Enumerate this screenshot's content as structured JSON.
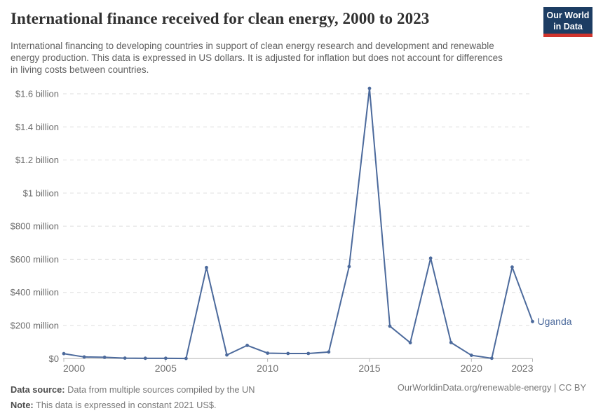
{
  "header": {
    "title": "International finance received for clean energy, 2000 to 2023",
    "subtitle": "International financing to developing countries in support of clean energy research and development and renewable energy production. This data is expressed in US dollars. It is adjusted for inflation but does not account for differences in living costs between countries.",
    "logo": {
      "line1": "Our World",
      "line2": "in Data",
      "navy": "#1d3d63",
      "red": "#d0342c"
    }
  },
  "chart_data": {
    "type": "line",
    "title": "International finance received for clean energy, 2000 to 2023",
    "xlabel": "",
    "ylabel": "",
    "xlim": [
      2000,
      2023
    ],
    "ylim_million_usd": [
      0,
      1660
    ],
    "grid": "horizontal-dashed",
    "legend_position": "end-of-line-label",
    "line_color": "#4C6A9C",
    "x_ticks": [
      2000,
      2005,
      2010,
      2015,
      2020,
      2023
    ],
    "x_tick_labels": [
      "2000",
      "2005",
      "2010",
      "2015",
      "2020",
      "2023"
    ],
    "y_ticks_million_usd": [
      0,
      200,
      400,
      600,
      800,
      1000,
      1200,
      1400,
      1600
    ],
    "y_tick_labels": [
      "$0",
      "$200 million",
      "$400 million",
      "$600 million",
      "$800 million",
      "$1 billion",
      "$1.2 billion",
      "$1.4 billion",
      "$1.6 billion"
    ],
    "series": [
      {
        "name": "Uganda",
        "x": [
          2000,
          2001,
          2002,
          2003,
          2004,
          2005,
          2006,
          2007,
          2008,
          2009,
          2010,
          2011,
          2012,
          2013,
          2014,
          2015,
          2016,
          2017,
          2018,
          2019,
          2020,
          2021,
          2022,
          2023
        ],
        "values_million_usd": [
          30,
          10,
          8,
          3,
          2,
          2,
          1,
          550,
          22,
          80,
          33,
          31,
          31,
          40,
          556,
          1633,
          196,
          96,
          607,
          97,
          20,
          2,
          553,
          224
        ]
      }
    ]
  },
  "footer": {
    "source_label": "Data source:",
    "source_text": " Data from multiple sources compiled by the UN",
    "note_label": "Note:",
    "note_text": " This data is expressed in constant 2021 US$.",
    "link": "OurWorldinData.org/renewable-energy | CC BY"
  }
}
